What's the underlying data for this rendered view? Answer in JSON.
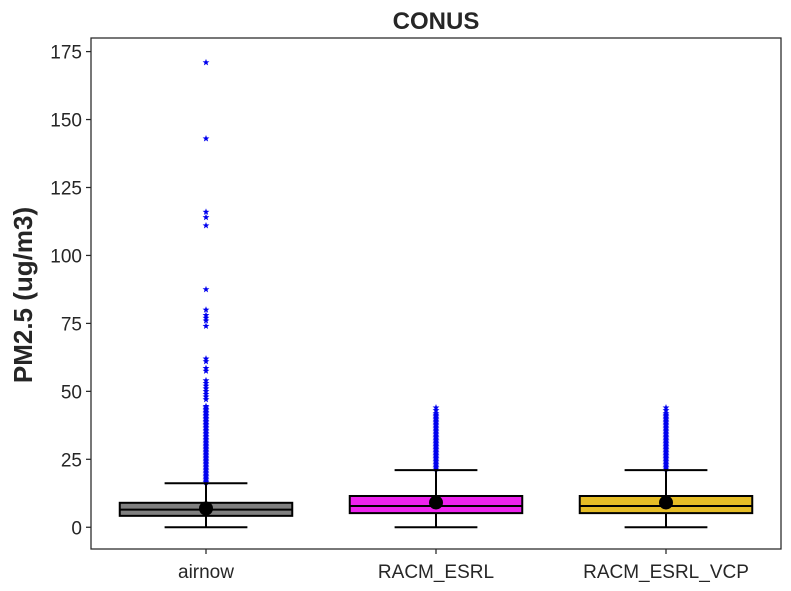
{
  "chart_data": {
    "type": "box",
    "title": "CONUS",
    "xlabel": "",
    "ylabel": "PM2.5 (ug/m3)",
    "ylim": [
      -8,
      180
    ],
    "yticks": [
      0,
      25,
      50,
      75,
      100,
      125,
      150,
      175
    ],
    "categories": [
      "airnow",
      "RACM_ESRL",
      "RACM_ESRL_VCP"
    ],
    "boxes": [
      {
        "name": "airnow",
        "color": "#808080",
        "whisker_low": 0,
        "q1": 4.2,
        "median": 6.5,
        "q3": 9.0,
        "whisker_high": 16.2,
        "mean": 6.9,
        "outlier_range": [
          16.5,
          45
        ],
        "outliers": [
          47,
          48,
          49,
          50,
          51,
          52,
          53,
          54,
          57.5,
          58.5,
          61,
          62,
          74,
          76,
          77,
          78,
          80,
          87.5,
          111,
          114,
          116,
          143,
          171
        ]
      },
      {
        "name": "RACM_ESRL",
        "color": "#ee22ee",
        "whisker_low": 0,
        "q1": 5.2,
        "median": 7.8,
        "q3": 11.5,
        "whisker_high": 21,
        "mean": 9.1,
        "outlier_range": [
          21.5,
          42
        ],
        "outliers": [
          43,
          44
        ]
      },
      {
        "name": "RACM_ESRL_VCP",
        "color": "#e6bd26",
        "whisker_low": 0,
        "q1": 5.2,
        "median": 7.8,
        "q3": 11.5,
        "whisker_high": 21,
        "mean": 9.1,
        "outlier_range": [
          21.5,
          42
        ],
        "outliers": [
          43,
          44
        ]
      }
    ],
    "grid": false,
    "legend": "none",
    "outlier_color": "#0000ee",
    "mean_color": "#000000"
  }
}
